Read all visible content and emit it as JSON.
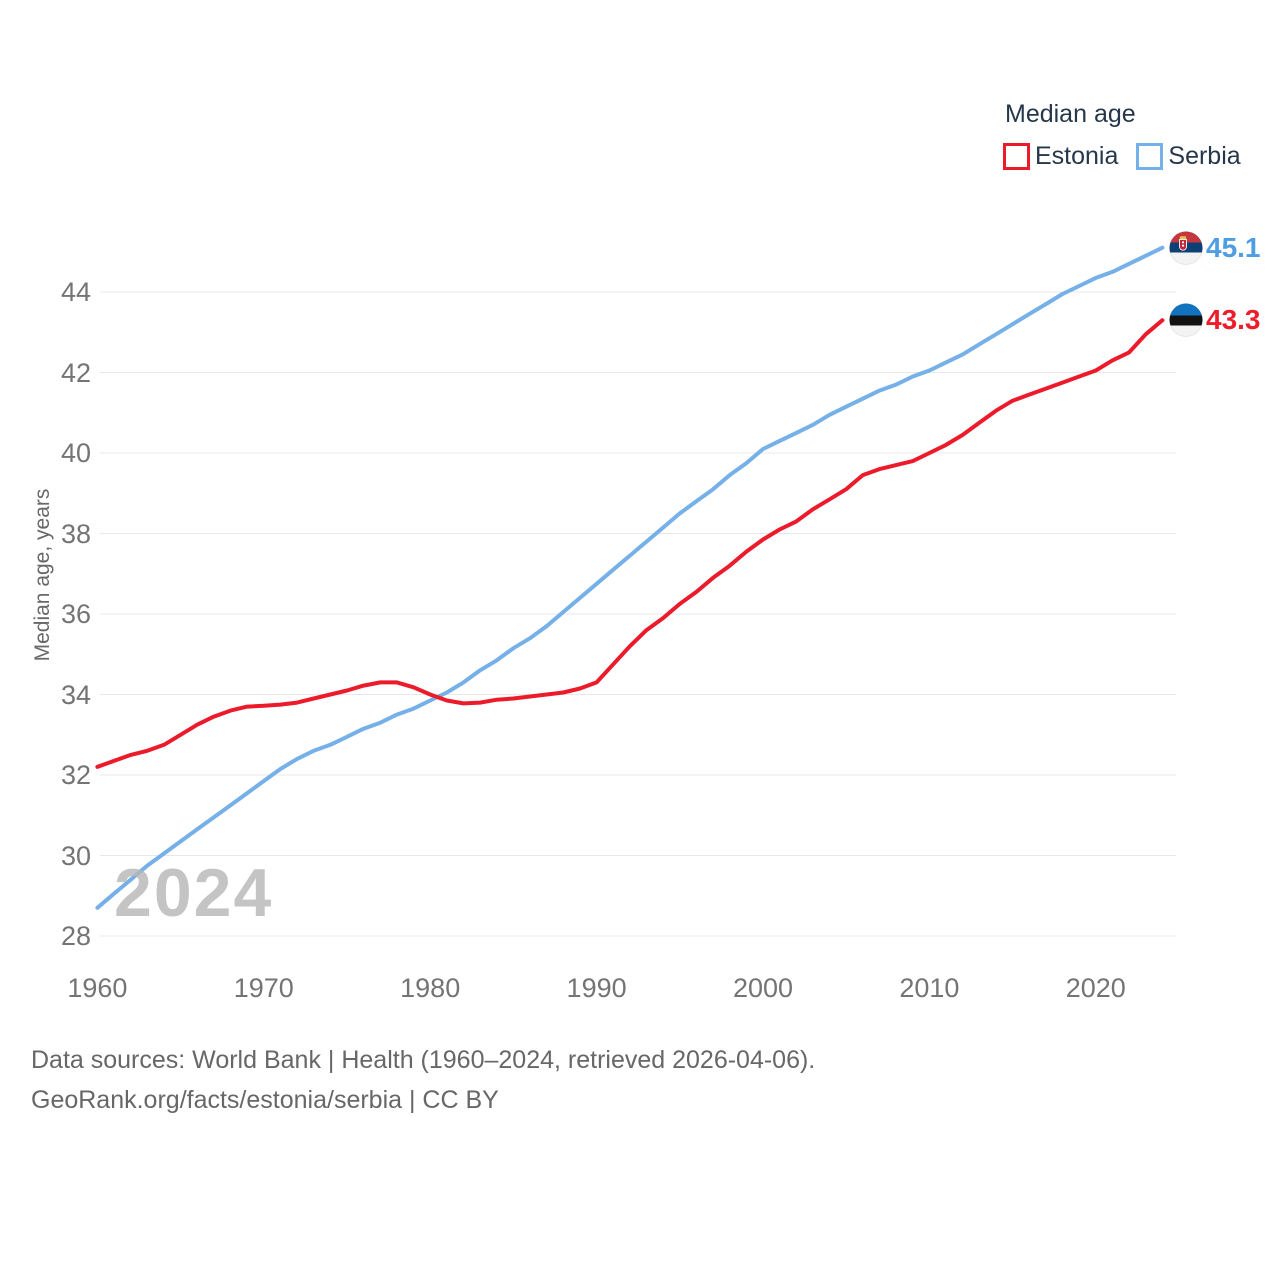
{
  "chart_data": {
    "type": "line",
    "title": "Median age",
    "ylabel": "Median age, years",
    "watermark": "2024",
    "x_start": 1960,
    "x_step": 1,
    "x_end": 2024,
    "x_ticks": [
      1960,
      1970,
      1980,
      1990,
      2000,
      2010,
      2020
    ],
    "y_ticks": [
      28,
      30,
      32,
      34,
      36,
      38,
      40,
      42,
      44
    ],
    "ylim": [
      27.5,
      45.6
    ],
    "grid": true,
    "legend_position": "top-right",
    "series": [
      {
        "name": "Serbia",
        "flag": "serbia",
        "color": "#76b0e8",
        "label_color": "#4f9de2",
        "end_label": "45.1",
        "end_value": 45.1,
        "values": [
          28.7,
          29.05,
          29.4,
          29.75,
          30.05,
          30.35,
          30.65,
          30.95,
          31.25,
          31.55,
          31.85,
          32.15,
          32.4,
          32.6,
          32.75,
          32.95,
          33.15,
          33.3,
          33.5,
          33.65,
          33.85,
          34.05,
          34.3,
          34.6,
          34.85,
          35.15,
          35.4,
          35.7,
          36.05,
          36.4,
          36.75,
          37.1,
          37.45,
          37.8,
          38.15,
          38.5,
          38.8,
          39.1,
          39.45,
          39.75,
          40.1,
          40.3,
          40.5,
          40.7,
          40.95,
          41.15,
          41.35,
          41.55,
          41.7,
          41.9,
          42.05,
          42.25,
          42.45,
          42.7,
          42.95,
          43.2,
          43.45,
          43.7,
          43.95,
          44.15,
          44.35,
          44.5,
          44.7,
          44.9,
          45.1
        ]
      },
      {
        "name": "Estonia",
        "flag": "estonia",
        "color": "#ec1b2b",
        "label_color": "#ed1d2b",
        "end_label": "43.3",
        "end_value": 43.3,
        "values": [
          32.2,
          32.35,
          32.5,
          32.6,
          32.75,
          33.0,
          33.25,
          33.45,
          33.6,
          33.7,
          33.72,
          33.75,
          33.8,
          33.9,
          34.0,
          34.1,
          34.22,
          34.3,
          34.3,
          34.18,
          34.0,
          33.85,
          33.78,
          33.8,
          33.87,
          33.9,
          33.95,
          34.0,
          34.05,
          34.15,
          34.3,
          34.75,
          35.2,
          35.6,
          35.9,
          36.25,
          36.55,
          36.9,
          37.2,
          37.55,
          37.85,
          38.1,
          38.3,
          38.6,
          38.85,
          39.1,
          39.45,
          39.6,
          39.7,
          39.8,
          40.0,
          40.2,
          40.45,
          40.75,
          41.05,
          41.3,
          41.45,
          41.6,
          41.75,
          41.9,
          42.05,
          42.3,
          42.5,
          42.95,
          43.3
        ]
      }
    ]
  },
  "legend": {
    "estonia_label": "Estonia",
    "serbia_label": "Serbia"
  },
  "footer": {
    "line1": "Data sources: World Bank | Health (1960–2024, retrieved 2026-04-06).",
    "line2": "GeoRank.org/facts/estonia/serbia | CC BY"
  }
}
